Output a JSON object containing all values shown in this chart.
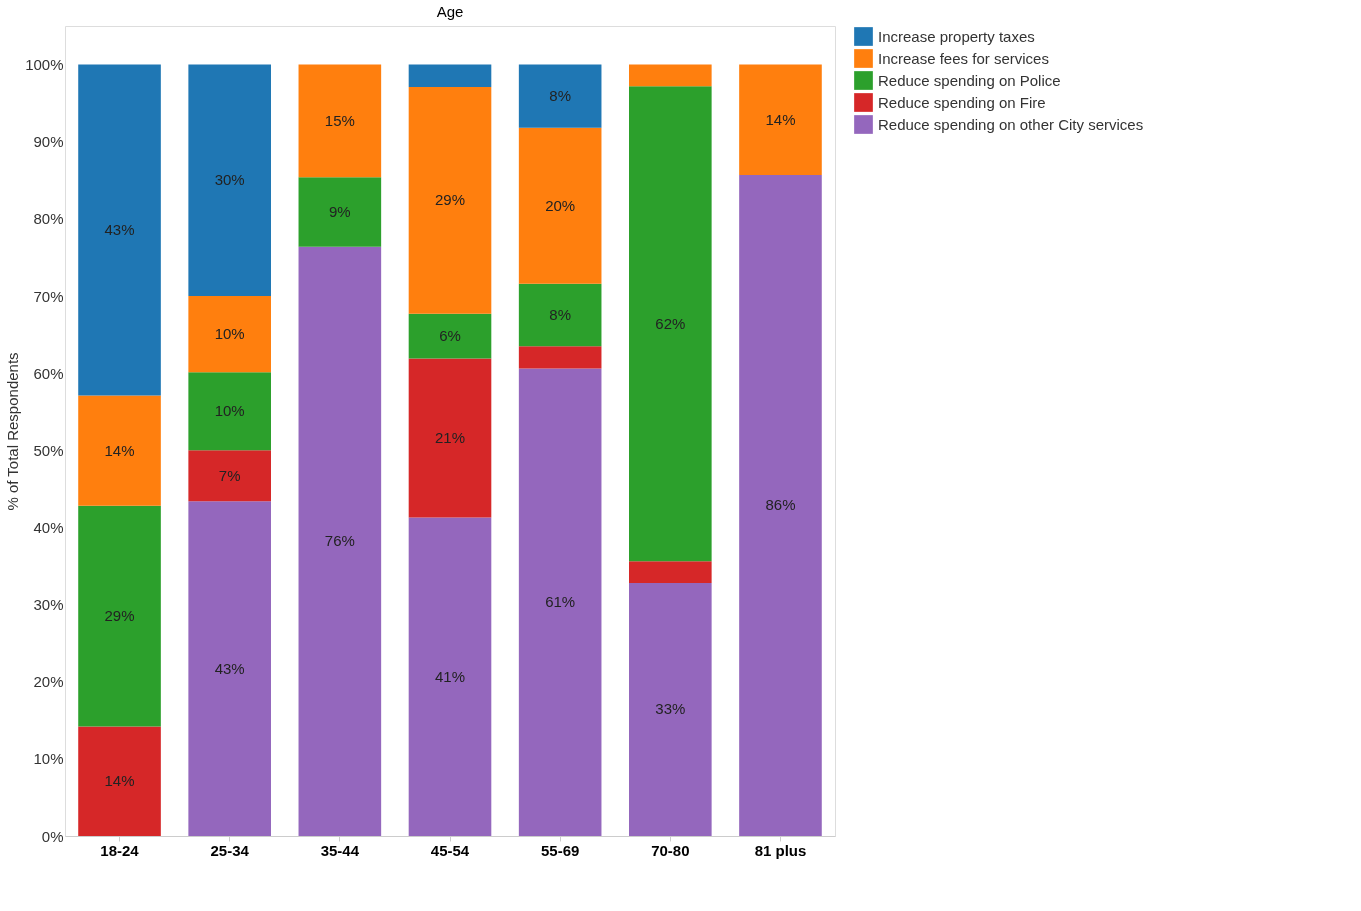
{
  "chart_data": {
    "type": "bar",
    "stacked": true,
    "xlabel": "Age",
    "ylabel": "% of Total Respondents",
    "categories": [
      "18-24",
      "25-34",
      "35-44",
      "45-54",
      "55-69",
      "70-80",
      "81 plus"
    ],
    "series": [
      {
        "name": "Reduce spending on other City services",
        "color": "#9467bd",
        "values": [
          null,
          43.4,
          76.4,
          41.3,
          60.6,
          32.8,
          85.7
        ],
        "value_labels": [
          null,
          "43%",
          "76%",
          "41%",
          "61%",
          "33%",
          "86%"
        ]
      },
      {
        "name": "Reduce spending on Fire",
        "color": "#d62728",
        "values": [
          14.2,
          6.6,
          null,
          20.6,
          2.9,
          2.8,
          null
        ],
        "value_labels": [
          "14%",
          "7%",
          null,
          "21%",
          null,
          null,
          null
        ]
      },
      {
        "name": "Reduce spending on Police",
        "color": "#2ca02c",
        "values": [
          28.6,
          10.1,
          9.0,
          5.8,
          8.1,
          61.6,
          null
        ],
        "value_labels": [
          "29%",
          "10%",
          "9%",
          "6%",
          "8%",
          "62%",
          null
        ]
      },
      {
        "name": "Increase fees for services",
        "color": "#ff7f0e",
        "values": [
          14.3,
          9.9,
          14.6,
          29.4,
          20.2,
          2.8,
          14.3
        ],
        "value_labels": [
          "14%",
          "10%",
          "15%",
          "29%",
          "20%",
          null,
          "14%"
        ]
      },
      {
        "name": "Increase property taxes",
        "color": "#1f77b4",
        "values": [
          42.9,
          30.0,
          null,
          2.9,
          8.2,
          null,
          null
        ],
        "value_labels": [
          "43%",
          "30%",
          null,
          null,
          "8%",
          null,
          null
        ]
      }
    ],
    "ylim": [
      0,
      105
    ],
    "yticks": [
      {
        "value": 0,
        "label": "0%"
      },
      {
        "value": 10,
        "label": "10%"
      },
      {
        "value": 20,
        "label": "20%"
      },
      {
        "value": 30,
        "label": "30%"
      },
      {
        "value": 40,
        "label": "40%"
      },
      {
        "value": 50,
        "label": "50%"
      },
      {
        "value": 60,
        "label": "60%"
      },
      {
        "value": 70,
        "label": "70%"
      },
      {
        "value": 80,
        "label": "80%"
      },
      {
        "value": 90,
        "label": "90%"
      },
      {
        "value": 100,
        "label": "100%"
      }
    ],
    "grid": false,
    "legend": "top right"
  }
}
